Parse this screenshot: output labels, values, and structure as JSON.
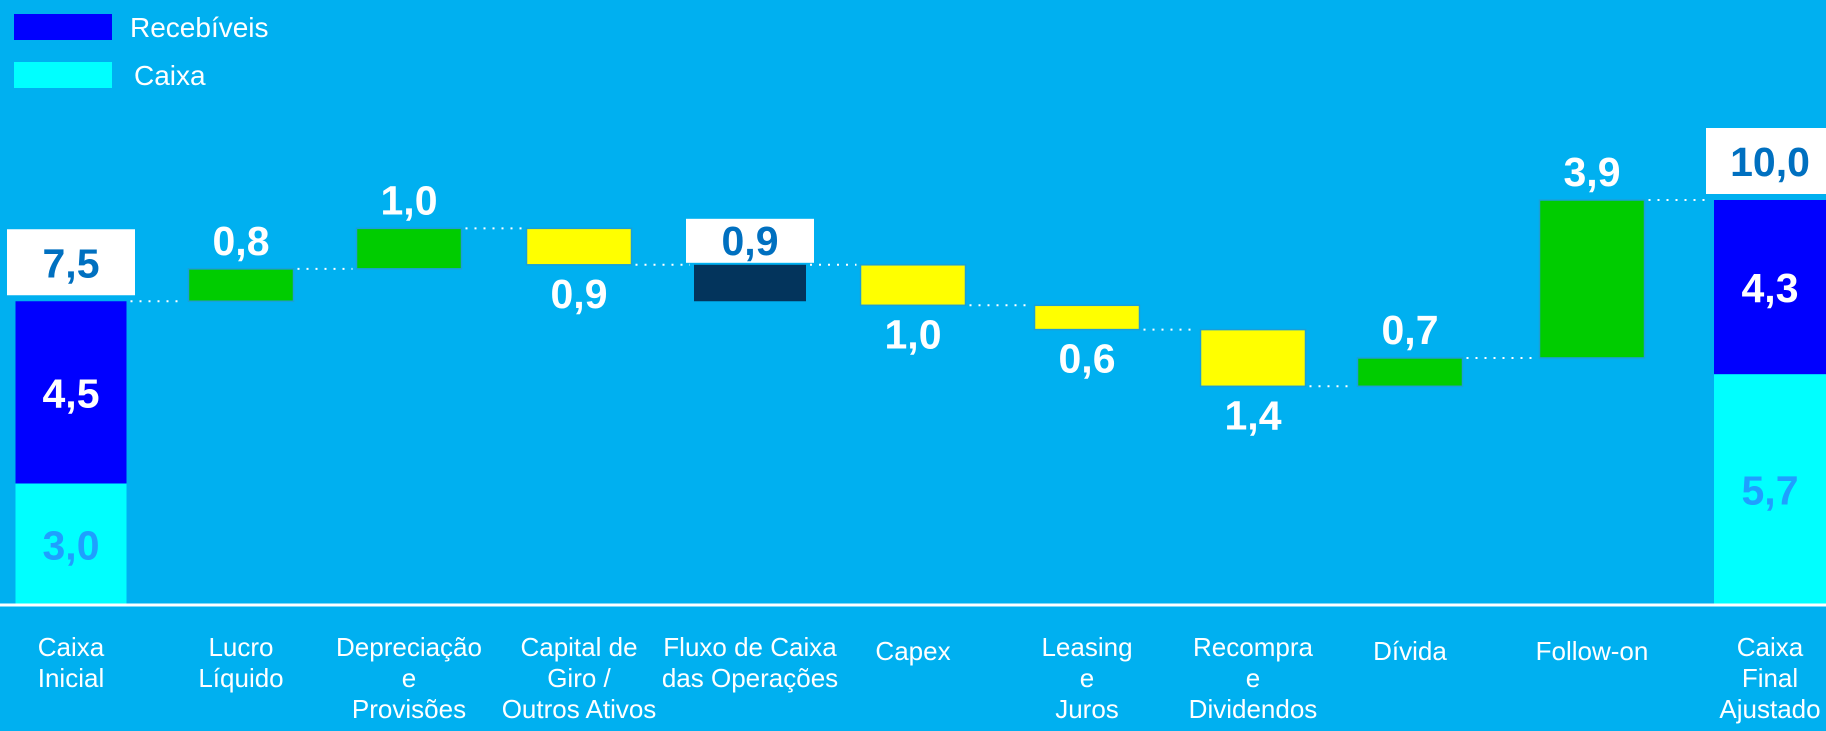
{
  "chart_data": {
    "type": "waterfall",
    "legend": [
      {
        "name": "Recebíveis",
        "color": "#0000ff"
      },
      {
        "name": "Caixa",
        "color": "#00ffff"
      }
    ],
    "colors": {
      "background": "#00b0f0",
      "positive": "#00cc00",
      "negative": "#ffff00",
      "subtotal": "#03345c",
      "recebiveis": "#0000ff",
      "caixa": "#00ffff"
    },
    "categories": [
      {
        "name": "Caixa Inicial",
        "label_lines": [
          "Caixa",
          "Inicial"
        ]
      },
      {
        "name": "Lucro Líquido",
        "label_lines": [
          "Lucro",
          "Líquido"
        ]
      },
      {
        "name": "Depreciação e Provisões",
        "label_lines": [
          "Depreciação",
          "e",
          "Provisões"
        ]
      },
      {
        "name": "Capital de Giro / Outros Ativos",
        "label_lines": [
          "Capital de",
          "Giro /",
          "Outros Ativos"
        ]
      },
      {
        "name": "Fluxo de Caixa das Operações",
        "label_lines": [
          "Fluxo de Caixa",
          "das Operações"
        ]
      },
      {
        "name": "Capex",
        "label_lines": [
          "Capex"
        ]
      },
      {
        "name": "Leasing e Juros",
        "label_lines": [
          "Leasing",
          "e",
          "Juros"
        ]
      },
      {
        "name": "Recompra e Dividendos",
        "label_lines": [
          "Recompra",
          "e",
          "Dividendos"
        ]
      },
      {
        "name": "Dívida",
        "label_lines": [
          "Dívida"
        ]
      },
      {
        "name": "Follow-on",
        "label_lines": [
          "Follow-on"
        ]
      },
      {
        "name": "Caixa Final Ajustado",
        "label_lines": [
          "Caixa",
          "Final",
          "Ajustado"
        ]
      }
    ],
    "bars": [
      {
        "kind": "total",
        "start": 0,
        "end": 7.5,
        "label": "7,5",
        "stack": [
          {
            "series": "Caixa",
            "value": 3.0,
            "label": "3,0"
          },
          {
            "series": "Recebíveis",
            "value": 4.5,
            "label": "4,5"
          }
        ]
      },
      {
        "kind": "increase",
        "start": 7.5,
        "end": 8.3,
        "label": "0,8"
      },
      {
        "kind": "increase",
        "start": 8.3,
        "end": 9.3,
        "label": "1,0"
      },
      {
        "kind": "decrease",
        "start": 9.3,
        "end": 8.4,
        "label": "0,9"
      },
      {
        "kind": "subtotal",
        "start": 7.5,
        "end": 8.4,
        "label": "0,9"
      },
      {
        "kind": "decrease",
        "start": 8.4,
        "end": 7.4,
        "label": "1,0"
      },
      {
        "kind": "decrease",
        "start": 7.4,
        "end": 6.8,
        "label": "0,6"
      },
      {
        "kind": "decrease",
        "start": 6.8,
        "end": 5.4,
        "label": "1,4"
      },
      {
        "kind": "increase",
        "start": 5.4,
        "end": 6.1,
        "label": "0,7"
      },
      {
        "kind": "increase",
        "start": 6.1,
        "end": 10.0,
        "label": "3,9"
      },
      {
        "kind": "total",
        "start": 0,
        "end": 10.0,
        "label": "10,0",
        "stack": [
          {
            "series": "Caixa",
            "value": 5.7,
            "label": "5,7"
          },
          {
            "series": "Recebíveis",
            "value": 4.3,
            "label": "4,3"
          }
        ]
      }
    ],
    "ylim": [
      0,
      10.5
    ],
    "grid": false,
    "legend_position": "top-left"
  }
}
